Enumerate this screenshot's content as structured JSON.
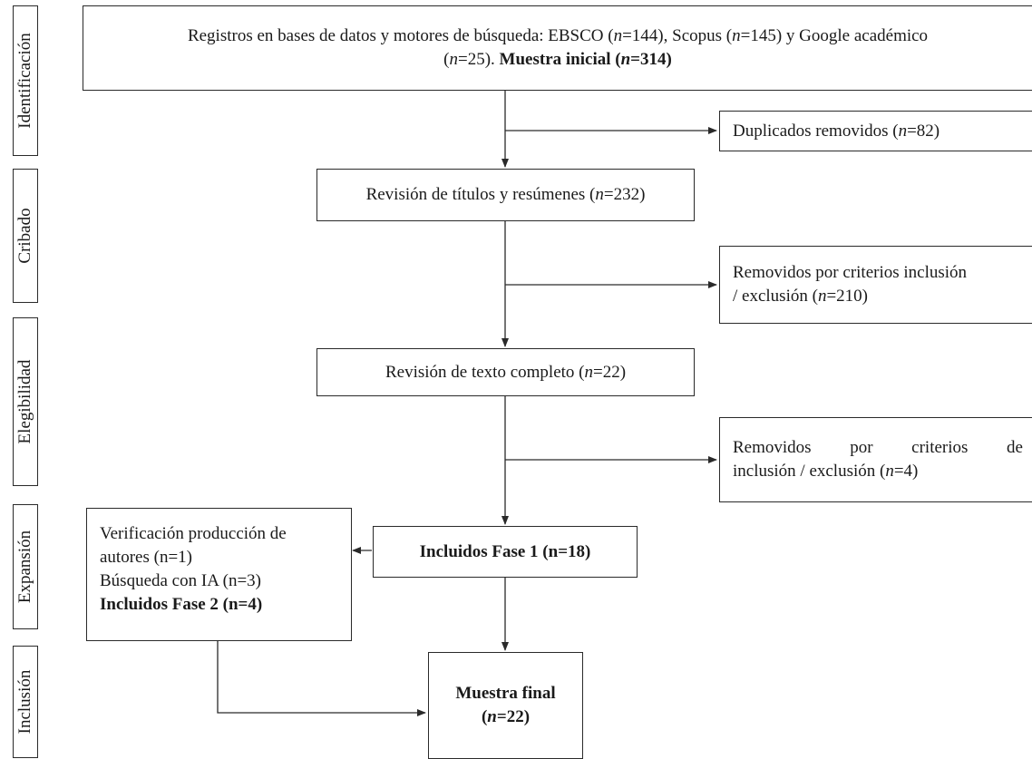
{
  "phases": {
    "identificacion": "Identificación",
    "cribado": "Cribado",
    "elegibilidad": "Elegibilidad",
    "expansion": "Expansión",
    "inclusion": "Inclusión"
  },
  "boxes": {
    "registros": {
      "line1": "Registros en bases de datos y motores de búsqueda: EBSCO (",
      "n_label": "n",
      "ebsco": "=144), Scopus (",
      "scopus": "=145) y Google académico",
      "line2a": "(",
      "google": "=25). ",
      "bold": "Muestra inicial (",
      "bold_n": "n",
      "bold_end": "=314)"
    },
    "duplicados": {
      "text": "Duplicados removidos (",
      "n": "n",
      "end": "=82)"
    },
    "revision_titulos": {
      "text": "Revisión de títulos y resúmenes (",
      "n": "n",
      "end": "=232)"
    },
    "removidos1": {
      "line1": "Removidos por criterios inclusión",
      "line2": "/ exclusión (",
      "n": "n",
      "end": "=210)"
    },
    "revision_texto": {
      "text": "Revisión de texto completo (",
      "n": "n",
      "end": "=22)"
    },
    "removidos2": {
      "line1": "Removidos por criterios de",
      "line2": "inclusión / exclusión (",
      "n": "n",
      "end": "=4)"
    },
    "incluidos1": {
      "text": "Incluidos Fase 1 (n=18)"
    },
    "expansion": {
      "line1": "Verificación producción de",
      "line2": "autores (n=1)",
      "line3": "Búsqueda con IA (n=3)",
      "line4": "Incluidos Fase 2 (n=4)"
    },
    "muestra_final": {
      "line1": "Muestra final",
      "line2a": "(",
      "n": "n",
      "line2b": "=22)"
    }
  }
}
